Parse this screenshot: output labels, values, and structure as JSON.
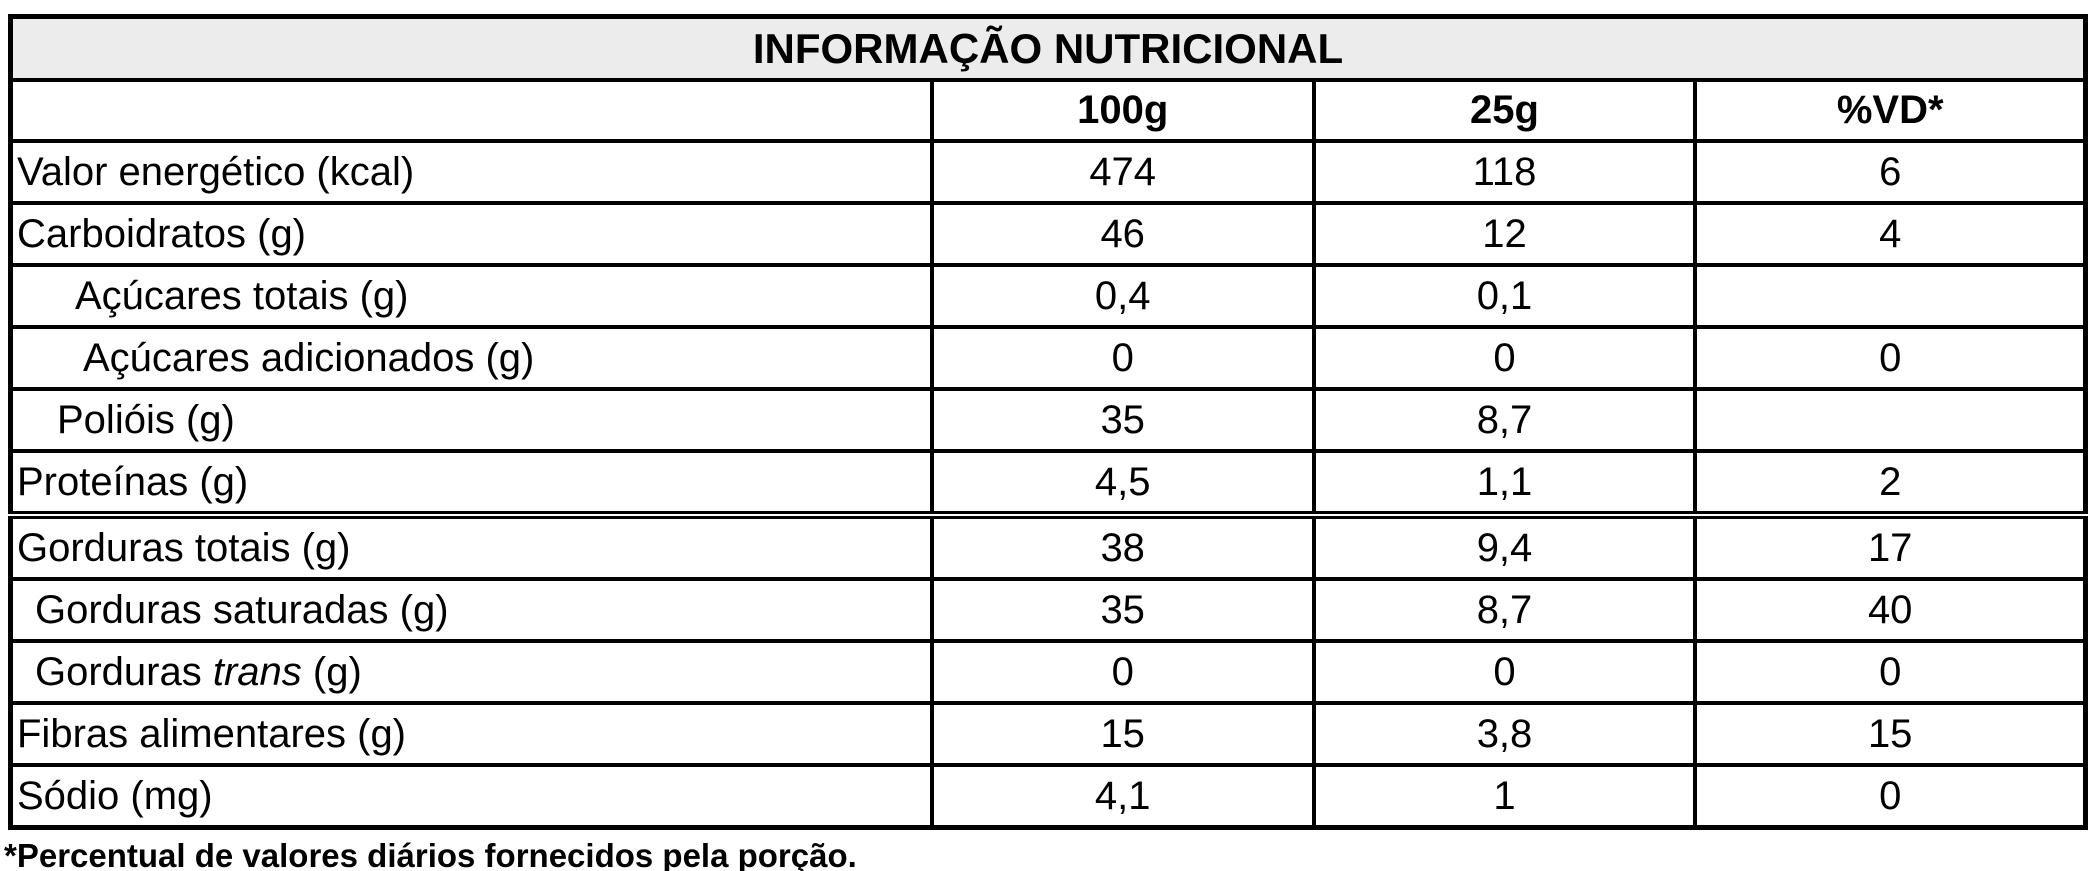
{
  "table": {
    "title": "INFORMAÇÃO NUTRICIONAL",
    "columns": [
      "",
      "100g",
      "25g",
      "%VD*"
    ],
    "rows": [
      {
        "label_pre": "Valor energético (kcal)",
        "label_italic": "",
        "label_post": "",
        "indent": 0,
        "per_100g": "474",
        "per_25g": "118",
        "vd": "6",
        "thick_top": false
      },
      {
        "label_pre": "Carboidratos (g)",
        "label_italic": "",
        "label_post": "",
        "indent": 0,
        "per_100g": "46",
        "per_25g": "12",
        "vd": "4",
        "thick_top": false
      },
      {
        "label_pre": "Açúcares totais (g)",
        "label_italic": "",
        "label_post": "",
        "indent": 58,
        "per_100g": "0,4",
        "per_25g": "0,1",
        "vd": "",
        "thick_top": false
      },
      {
        "label_pre": "Açúcares adicionados (g)",
        "label_italic": "",
        "label_post": "",
        "indent": 66,
        "per_100g": "0",
        "per_25g": "0",
        "vd": "0",
        "thick_top": false
      },
      {
        "label_pre": "Polióis (g)",
        "label_italic": "",
        "label_post": "",
        "indent": 40,
        "per_100g": "35",
        "per_25g": "8,7",
        "vd": "",
        "thick_top": false
      },
      {
        "label_pre": "Proteínas (g)",
        "label_italic": "",
        "label_post": "",
        "indent": 0,
        "per_100g": "4,5",
        "per_25g": "1,1",
        "vd": "2",
        "thick_top": false
      },
      {
        "label_pre": "Gorduras totais (g)",
        "label_italic": "",
        "label_post": "",
        "indent": 0,
        "per_100g": "38",
        "per_25g": "9,4",
        "vd": "17",
        "thick_top": true
      },
      {
        "label_pre": "Gorduras saturadas (g)",
        "label_italic": "",
        "label_post": "",
        "indent": 18,
        "per_100g": "35",
        "per_25g": "8,7",
        "vd": "40",
        "thick_top": false
      },
      {
        "label_pre": "Gorduras ",
        "label_italic": "trans",
        "label_post": " (g)",
        "indent": 18,
        "per_100g": "0",
        "per_25g": "0",
        "vd": "0",
        "thick_top": false
      },
      {
        "label_pre": "Fibras alimentares (g)",
        "label_italic": "",
        "label_post": "",
        "indent": 0,
        "per_100g": "15",
        "per_25g": "3,8",
        "vd": "15",
        "thick_top": false
      },
      {
        "label_pre": "Sódio (mg)",
        "label_italic": "",
        "label_post": "",
        "indent": 0,
        "per_100g": "4,1",
        "per_25g": "1",
        "vd": "0",
        "thick_top": false
      }
    ],
    "footnote": "*Percentual de valores diários fornecidos pela porção."
  },
  "colors": {
    "title_bg": "#ececec",
    "border": "#000000",
    "text": "#000000"
  }
}
